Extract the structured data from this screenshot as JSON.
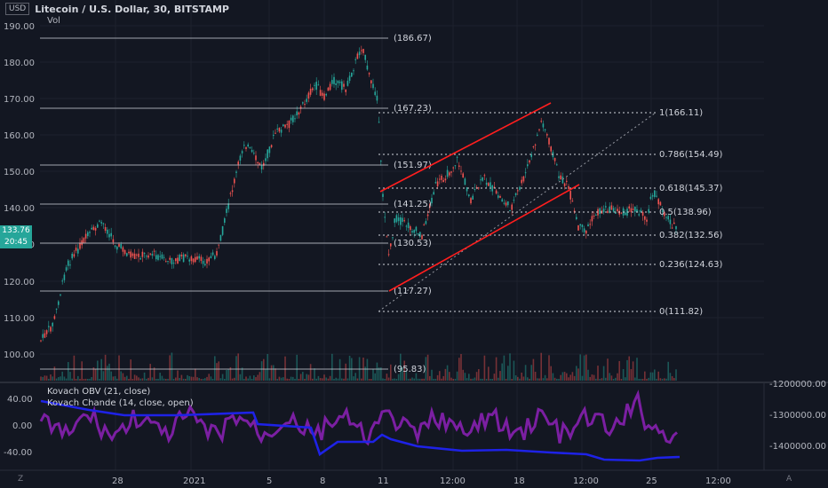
{
  "header": {
    "currency": "USD",
    "title": "Litecoin / U.S. Dollar, 30, BITSTAMP",
    "volume_label": "Vol"
  },
  "price_axis": {
    "ticks": [
      "190.00",
      "180.00",
      "170.00",
      "160.00",
      "150.00",
      "140.00",
      "130.00",
      "120.00",
      "110.00",
      "100.00"
    ]
  },
  "current_price": {
    "price": "133.76",
    "countdown": "20:45"
  },
  "time_axis": {
    "ticks": [
      "28",
      "2021",
      "5",
      "8",
      "11",
      "12:00",
      "18",
      "12:00",
      "25",
      "12:00"
    ]
  },
  "horizontal_levels": [
    "(186.67)",
    "(167.23)",
    "(151.97)",
    "(141.25)",
    "(130.53)",
    "(117.27)",
    "(95.83)"
  ],
  "fib_levels": [
    "1(166.11)",
    "0.786(154.49)",
    "0.618(145.37)",
    "0.5(138.96)",
    "0.382(132.56)",
    "0.236(124.63)",
    "0(111.82)"
  ],
  "indicators": {
    "obv_label": "Kovach OBV (21, close)",
    "chande_label": "Kovach Chande (14, close, open)"
  },
  "osc_axis_left": [
    "40.00",
    "0.00",
    "-40.00"
  ],
  "osc_axis_right": [
    "-1200000.00",
    "-1300000.00",
    "-1400000.00"
  ],
  "corner_labels": {
    "left": "Z",
    "right": "A"
  },
  "colors": {
    "bg": "#131722",
    "up": "#26a69a",
    "down": "#ef5350",
    "channel": "#ff1e1e",
    "obv": "#7b1fa2",
    "chande": "#1e22e6"
  }
}
